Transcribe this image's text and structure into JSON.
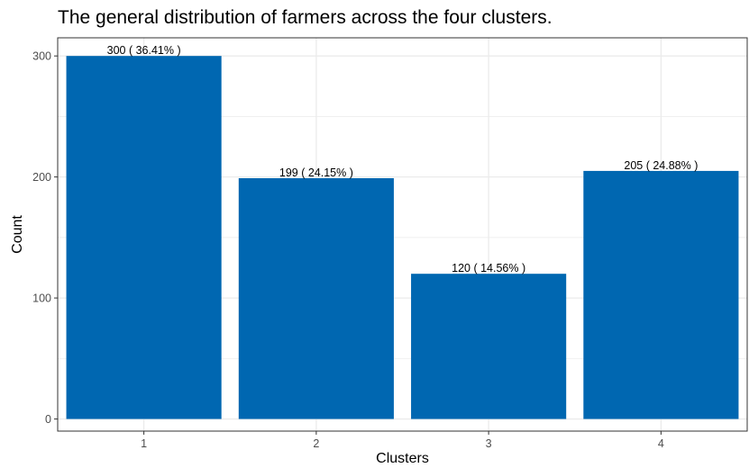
{
  "chart_data": {
    "type": "bar",
    "title": "The general distribution of farmers across the four clusters.",
    "xlabel": "Clusters",
    "ylabel": "Count",
    "categories": [
      "1",
      "2",
      "3",
      "4"
    ],
    "values": [
      300,
      199,
      120,
      205
    ],
    "data_labels": [
      "300 ( 36.41% )",
      "199 ( 24.15% )",
      "120 ( 14.56% )",
      "205 ( 24.88% )"
    ],
    "yticks": [
      0,
      100,
      200,
      300
    ],
    "ylim": [
      -10,
      315
    ],
    "grid": true,
    "legend": "none",
    "colors": {
      "bar": "#0067B1",
      "grid": "#EBEBEB",
      "panel_border": "#333333",
      "text": "#000000",
      "tick_text": "#4D4D4D"
    }
  }
}
